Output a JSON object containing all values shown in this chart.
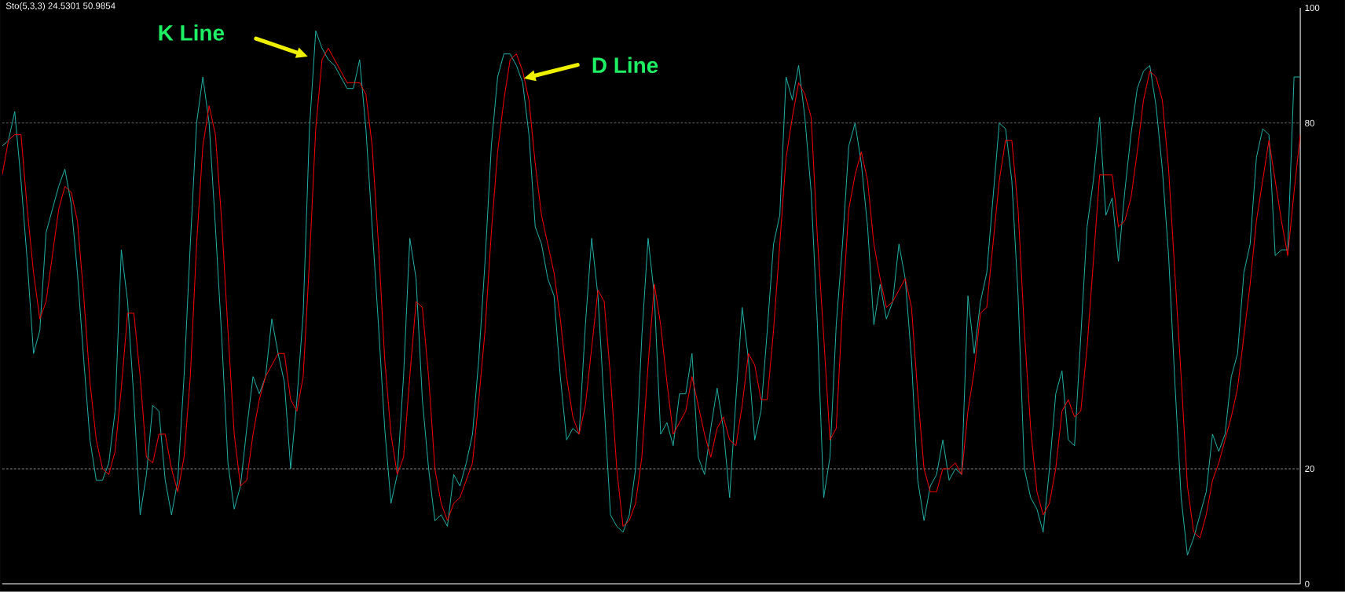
{
  "chart_data": {
    "type": "line",
    "title": "Sto(5,3,3) 24.5301 50.9854",
    "annotations": [
      "K Line",
      "D Line"
    ],
    "categories": [
      null,
      null,
      null,
      null,
      null,
      null,
      null,
      null,
      null,
      null,
      null,
      null,
      null,
      null,
      null,
      null,
      null,
      null,
      null,
      null,
      null,
      null,
      null,
      null,
      null,
      null,
      null,
      null,
      null,
      null,
      null,
      null,
      null,
      null,
      null,
      null,
      null,
      null,
      null,
      null,
      null,
      null,
      null,
      null,
      null,
      null,
      null,
      null,
      null,
      null,
      null,
      null,
      null,
      null,
      null,
      null,
      null,
      null,
      null,
      null,
      null,
      null,
      null,
      null,
      null,
      null,
      null,
      null,
      null,
      null,
      null,
      null,
      null,
      null,
      null,
      null,
      null,
      null,
      null,
      null,
      null,
      null,
      null,
      null,
      null,
      null,
      null,
      null,
      null,
      null,
      null,
      null,
      null,
      null,
      null,
      null,
      null,
      null,
      null,
      null,
      null,
      null,
      null,
      null,
      null,
      null,
      null,
      null,
      null,
      null,
      null,
      null,
      null,
      null,
      null,
      null,
      null,
      null,
      null,
      null,
      null,
      null,
      null,
      null,
      null,
      null,
      null,
      null,
      null,
      null,
      null,
      null,
      null,
      null,
      null,
      null,
      null,
      null,
      null,
      null,
      null,
      null,
      null,
      null,
      null,
      null,
      null,
      null,
      null,
      null,
      null,
      null,
      null,
      null,
      null,
      null,
      null,
      null,
      null,
      null,
      null,
      null,
      null,
      null,
      null,
      null,
      null,
      null,
      null,
      null,
      null,
      null,
      null,
      null,
      null,
      null,
      null,
      null,
      null,
      null,
      null,
      null,
      null,
      null,
      null,
      null,
      null,
      null,
      null,
      null,
      null,
      null,
      null,
      null,
      null,
      null,
      null,
      null,
      null,
      null,
      null,
      null,
      null,
      null,
      null,
      null,
      null,
      null
    ],
    "series": [
      {
        "color": "#20b2aa",
        "values": [
          76,
          77,
          82,
          70,
          56,
          40,
          44,
          61,
          65,
          69,
          72,
          66,
          54,
          39,
          25,
          18,
          18,
          21,
          30,
          58,
          49,
          32,
          12,
          19,
          31,
          30,
          18,
          12,
          18,
          36,
          59,
          80,
          88,
          80,
          62,
          43,
          21,
          13,
          17,
          27,
          36,
          33,
          36,
          46,
          40,
          35,
          20,
          32,
          47,
          79,
          96,
          93,
          91,
          90,
          88,
          86,
          86,
          91,
          79,
          62,
          45,
          27,
          14,
          19,
          36,
          60,
          53,
          32,
          20,
          11,
          12,
          10,
          19,
          17,
          21,
          26,
          39,
          56,
          76,
          88,
          92,
          92,
          90,
          87,
          78,
          62,
          59,
          53,
          50,
          36,
          25,
          27,
          26,
          45,
          60,
          50,
          31,
          12,
          10,
          9,
          12,
          20,
          43,
          60,
          50,
          26,
          28,
          24,
          33,
          33,
          40,
          22,
          19,
          27,
          34,
          27,
          15,
          32,
          48,
          39,
          25,
          30,
          44,
          59,
          64,
          88,
          84,
          90,
          81,
          68,
          45,
          15,
          22,
          45,
          59,
          76,
          80,
          73,
          62,
          45,
          52,
          46,
          49,
          59,
          53,
          39,
          18,
          11,
          17,
          19,
          25,
          18,
          20,
          19,
          50,
          40,
          49,
          54,
          67,
          80,
          79,
          70,
          50,
          20,
          15,
          13,
          9,
          20,
          33,
          37,
          25,
          24,
          43,
          62,
          70,
          81,
          64,
          67,
          56,
          68,
          78,
          86,
          89,
          90,
          83,
          72,
          57,
          35,
          15,
          5,
          8,
          12,
          16,
          26,
          23,
          26,
          36,
          40,
          54,
          59,
          74,
          79,
          78,
          57,
          58,
          58,
          88,
          88
        ]
      },
      {
        "color": "#ff0000",
        "values": [
          71,
          77,
          78,
          78,
          65,
          54,
          46,
          49,
          57,
          65,
          69,
          68,
          63,
          50,
          35,
          25,
          20,
          19,
          23,
          34,
          47,
          47,
          36,
          22,
          21,
          26,
          26,
          20,
          16,
          22,
          36,
          59,
          76,
          83,
          78,
          63,
          44,
          26,
          17,
          18,
          26,
          32,
          36,
          38,
          40,
          40,
          32,
          30,
          36,
          56,
          79,
          91,
          93,
          91,
          89,
          87,
          87,
          87,
          85,
          76,
          59,
          39,
          26,
          19,
          22,
          36,
          49,
          48,
          36,
          20,
          14,
          11,
          14,
          15,
          18,
          21,
          32,
          44,
          61,
          75,
          84,
          91,
          92,
          89,
          84,
          73,
          64,
          59,
          54,
          46,
          36,
          29,
          26,
          31,
          41,
          51,
          49,
          36,
          20,
          10,
          11,
          14,
          22,
          38,
          52,
          45,
          35,
          26,
          28,
          30,
          36,
          31,
          26,
          22,
          27,
          29,
          25,
          24,
          31,
          40,
          38,
          32,
          32,
          44,
          59,
          74,
          81,
          87,
          85,
          81,
          60,
          43,
          25,
          27,
          48,
          65,
          71,
          75,
          70,
          59,
          53,
          48,
          49,
          51,
          53,
          48,
          33,
          20,
          16,
          16,
          20,
          20,
          21,
          19,
          30,
          37,
          47,
          48,
          59,
          70,
          77,
          77,
          65,
          44,
          27,
          16,
          12,
          14,
          20,
          30,
          32,
          29,
          30,
          41,
          56,
          71,
          71,
          71,
          62,
          63,
          67,
          75,
          84,
          89,
          88,
          84,
          72,
          54,
          36,
          17,
          9,
          8,
          12,
          18,
          21,
          25,
          29,
          34,
          43,
          52,
          63,
          70,
          77,
          70,
          63,
          57,
          68,
          78
        ]
      }
    ],
    "ylim": [
      0,
      100
    ],
    "yticks": [
      0,
      20,
      80,
      100
    ],
    "ref_lines": [
      {
        "axis": "y",
        "value": 20,
        "color": "#c8c8c8",
        "line_style": "dashed"
      },
      {
        "axis": "y",
        "value": 80,
        "color": "#c8c8c8",
        "line_style": "dashed"
      }
    ],
    "tick_labels": "y"
  }
}
